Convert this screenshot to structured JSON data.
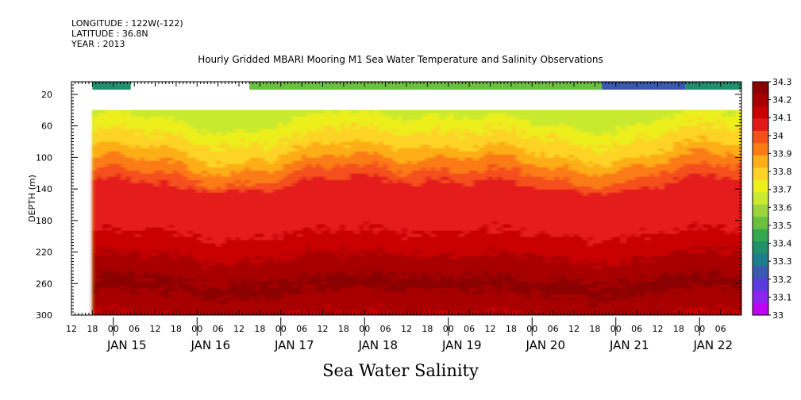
{
  "header": {
    "longitude": "LONGITUDE : 122W(-122)",
    "latitude": "LATITUDE : 36.8N",
    "year": "YEAR : 2013"
  },
  "chart_data": {
    "type": "heatmap",
    "title": "Hourly Gridded MBARI Mooring M1 Sea Water Temperature and Salinity Observations",
    "bottom_title": "Sea Water Salinity",
    "ylabel": "DEPTH (m)",
    "ylim": [
      300,
      4
    ],
    "yticks": [
      20,
      60,
      100,
      140,
      180,
      220,
      260,
      300
    ],
    "x_start": "2013-01-14T12:00",
    "x_end": "2013-01-22T12:00",
    "x_hour_ticks": [
      "12",
      "18",
      "00",
      "06",
      "12",
      "18",
      "00",
      "06",
      "12",
      "18",
      "00",
      "06",
      "12",
      "18",
      "00",
      "06",
      "12",
      "18",
      "00",
      "06",
      "12",
      "18",
      "00",
      "06",
      "12",
      "18",
      "00",
      "06",
      "12",
      "18",
      "00",
      "06"
    ],
    "x_day_labels": [
      "JAN 15",
      "JAN 16",
      "JAN 17",
      "JAN 18",
      "JAN 19",
      "JAN 20",
      "JAN 21",
      "JAN 22"
    ],
    "data_start": "2013-01-14T18:00",
    "surface_segments": [
      {
        "from": "2013-01-14T18:00",
        "to": "2013-01-15T05:00",
        "value": 33.35
      },
      {
        "from": "2013-01-16T15:00",
        "to": "2013-01-20T20:00",
        "value": 33.5
      },
      {
        "from": "2013-01-20T20:00",
        "to": "2013-01-21T20:00",
        "value": 33.2
      },
      {
        "from": "2013-01-21T20:00",
        "to": "2013-01-22T12:00",
        "value": 33.35
      }
    ],
    "depth_profile": {
      "depths": [
        40,
        60,
        80,
        100,
        120,
        140,
        160,
        180,
        200,
        220,
        240,
        260,
        280,
        300
      ],
      "salinity": [
        33.6,
        33.7,
        33.75,
        33.85,
        33.95,
        34.05,
        34.05,
        34.05,
        34.1,
        34.15,
        34.2,
        34.25,
        34.2,
        34.15
      ]
    },
    "colorbar": {
      "labels": [
        "34.3",
        "34.2",
        "34.1",
        "34",
        "33.9",
        "33.8",
        "33.7",
        "33.6",
        "33.5",
        "33.4",
        "33.3",
        "33.2",
        "33.1",
        "33"
      ],
      "range": [
        33.0,
        34.3
      ],
      "colors": [
        "#8b0000",
        "#a80000",
        "#c80000",
        "#e41a1a",
        "#f4501c",
        "#fb7b13",
        "#fdae19",
        "#fdd426",
        "#ecef1e",
        "#c9ea2e",
        "#9ed53d",
        "#6cc040",
        "#33a850",
        "#20906a",
        "#1f7c8a",
        "#3b59b0",
        "#5a3be0",
        "#8a26ee",
        "#c000f4"
      ]
    }
  }
}
